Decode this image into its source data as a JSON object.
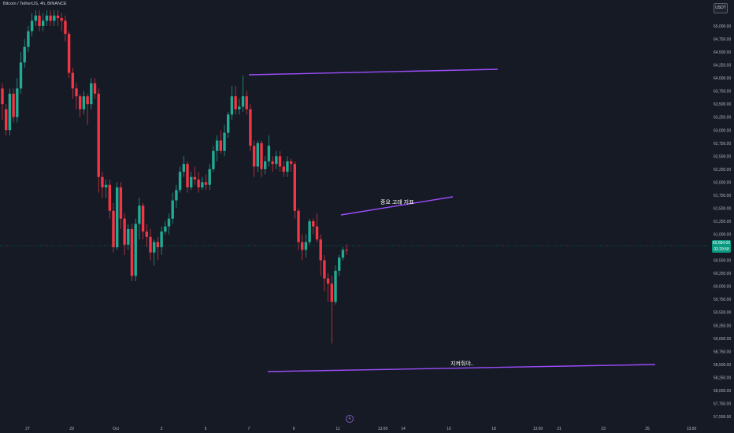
{
  "header": {
    "symbol_title": "Bitcoin / TetherUS, 4h, BINANCE"
  },
  "toolbar": {
    "currency_label": "USDT"
  },
  "colors": {
    "up": "#22ab94",
    "down": "#f23645",
    "trendline": "#9c4dfa",
    "badge": "#089981"
  },
  "price_axis": {
    "labels": [
      "65,000.00",
      "64,750.00",
      "64,500.00",
      "64,250.00",
      "64,000.00",
      "63,750.00",
      "63,500.00",
      "63,250.00",
      "63,000.00",
      "62,750.00",
      "62,500.00",
      "62,250.00",
      "62,000.00",
      "61,750.00",
      "61,500.00",
      "61,250.00",
      "61,000.00",
      "60,750.00",
      "60,500.00",
      "60,250.00",
      "60,000.00",
      "59,750.00",
      "59,500.00",
      "59,250.00",
      "59,000.00",
      "58,750.00",
      "58,500.00",
      "58,250.00",
      "58,000.00",
      "57,750.00",
      "57,500.00"
    ]
  },
  "time_axis": {
    "labels": [
      "27",
      "29",
      "Oct",
      "3",
      "5",
      "7",
      "9",
      "11",
      "13:00",
      "14",
      "16",
      "18",
      "13:00",
      "21",
      "23",
      "25",
      "13:00"
    ]
  },
  "last_price": {
    "price": "60,684.00",
    "countdown": "02:29:58"
  },
  "annotations": {
    "label_1": "중요 고래 지표",
    "label_2": "지켜줘야.."
  },
  "chart_data": {
    "type": "candlestick",
    "title": "Bitcoin / TetherUS, 4h, BINANCE",
    "ylim": [
      57500,
      65250
    ],
    "candles": [
      [
        63800,
        63500,
        63200,
        63900
      ],
      [
        63400,
        63000,
        62900,
        63500
      ],
      [
        63000,
        63700,
        62900,
        63800
      ],
      [
        63700,
        63250,
        63150,
        63800
      ],
      [
        63250,
        63800,
        63150,
        64000
      ],
      [
        63800,
        64300,
        63700,
        64500
      ],
      [
        64300,
        64600,
        64200,
        64750
      ],
      [
        64600,
        64900,
        64500,
        65000
      ],
      [
        64900,
        65100,
        64800,
        65250
      ],
      [
        65100,
        65200,
        65000,
        65300
      ],
      [
        65200,
        65000,
        64900,
        65300
      ],
      [
        65000,
        65100,
        64900,
        65250
      ],
      [
        65100,
        65200,
        65000,
        65300
      ],
      [
        65200,
        65100,
        65000,
        65300
      ],
      [
        65100,
        65200,
        65000,
        65300
      ],
      [
        65200,
        65150,
        65000,
        65300
      ],
      [
        65150,
        65100,
        64900,
        65250
      ],
      [
        65100,
        64850,
        64700,
        65200
      ],
      [
        64850,
        64100,
        64000,
        64900
      ],
      [
        64100,
        63800,
        63600,
        64200
      ],
      [
        63800,
        63650,
        63400,
        63900
      ],
      [
        63650,
        63400,
        63250,
        63700
      ],
      [
        63400,
        63650,
        63300,
        63750
      ],
      [
        63650,
        63500,
        63100,
        63700
      ],
      [
        63500,
        63900,
        63400,
        64000
      ],
      [
        63900,
        63700,
        63600,
        64000
      ],
      [
        63700,
        62100,
        61800,
        63800
      ],
      [
        62100,
        61900,
        61700,
        62200
      ],
      [
        61900,
        61950,
        61700,
        62050
      ],
      [
        61950,
        61450,
        61300,
        62050
      ],
      [
        61450,
        60750,
        60650,
        61600
      ],
      [
        60750,
        61900,
        60700,
        62000
      ],
      [
        61900,
        61300,
        61100,
        62000
      ],
      [
        61300,
        60800,
        60600,
        61400
      ],
      [
        60800,
        61100,
        60700,
        61200
      ],
      [
        61100,
        60200,
        60100,
        61200
      ],
      [
        60200,
        61200,
        60100,
        61300
      ],
      [
        61200,
        61550,
        60900,
        61700
      ],
      [
        61550,
        61050,
        60900,
        61600
      ],
      [
        61050,
        60950,
        60750,
        61200
      ],
      [
        60950,
        60650,
        60500,
        61100
      ],
      [
        60650,
        60850,
        60400,
        60900
      ],
      [
        60850,
        60750,
        60500,
        60950
      ],
      [
        60750,
        61050,
        60600,
        61150
      ],
      [
        61050,
        61150,
        61000,
        61250
      ],
      [
        61150,
        61300,
        61000,
        61400
      ],
      [
        61300,
        61650,
        61200,
        61800
      ],
      [
        61650,
        61850,
        61500,
        61950
      ],
      [
        61850,
        62200,
        61800,
        62300
      ],
      [
        62200,
        62350,
        62100,
        62500
      ],
      [
        62350,
        61900,
        61800,
        62400
      ],
      [
        61900,
        62100,
        61850,
        62200
      ],
      [
        62100,
        62050,
        61950,
        62300
      ],
      [
        62050,
        61900,
        61800,
        62200
      ],
      [
        61900,
        62000,
        61850,
        62100
      ],
      [
        62000,
        61950,
        61850,
        62150
      ],
      [
        61950,
        62250,
        61850,
        62350
      ],
      [
        62250,
        62600,
        62200,
        62700
      ],
      [
        62600,
        62800,
        62400,
        62900
      ],
      [
        62800,
        62600,
        62550,
        63000
      ],
      [
        62600,
        62950,
        62500,
        63100
      ],
      [
        62950,
        63300,
        62850,
        63350
      ],
      [
        63300,
        63650,
        63200,
        63850
      ],
      [
        63650,
        63400,
        63300,
        63850
      ],
      [
        63400,
        63450,
        63300,
        63600
      ],
      [
        63450,
        63650,
        63350,
        64050
      ],
      [
        63650,
        63400,
        63300,
        63750
      ],
      [
        63400,
        62700,
        62600,
        63500
      ],
      [
        62700,
        62300,
        62100,
        62800
      ],
      [
        62300,
        62750,
        62200,
        62800
      ],
      [
        62750,
        62250,
        62100,
        62800
      ],
      [
        62250,
        62400,
        62150,
        62500
      ],
      [
        62400,
        62700,
        62300,
        62900
      ],
      [
        62400,
        62350,
        62200,
        62500
      ],
      [
        62350,
        62500,
        62250,
        62600
      ],
      [
        62500,
        62300,
        62200,
        62600
      ],
      [
        62300,
        62200,
        62100,
        62400
      ],
      [
        62200,
        62400,
        62100,
        62500
      ],
      [
        62400,
        62350,
        62200,
        62450
      ],
      [
        62350,
        61450,
        61300,
        62400
      ],
      [
        61450,
        60850,
        60700,
        61500
      ],
      [
        60850,
        60700,
        60500,
        61000
      ],
      [
        60700,
        60850,
        60550,
        61000
      ],
      [
        60850,
        61250,
        60800,
        61300
      ],
      [
        61250,
        61150,
        61000,
        61300
      ],
      [
        61150,
        60900,
        60850,
        61400
      ],
      [
        60900,
        60500,
        60200,
        61000
      ],
      [
        60500,
        60150,
        59900,
        60600
      ],
      [
        60150,
        60050,
        59700,
        60250
      ],
      [
        60050,
        59700,
        58900,
        60200
      ],
      [
        59700,
        60300,
        59650,
        60400
      ],
      [
        60300,
        60550,
        60200,
        60600
      ],
      [
        60550,
        60700,
        60500,
        60750
      ],
      [
        60700,
        60684,
        60600,
        60800
      ]
    ],
    "trendlines": [
      {
        "label": "",
        "from": [
          "Oct 7 12:00",
          63840
        ],
        "to": [
          "Oct 17 04:00",
          63950
        ]
      },
      {
        "label": "중요 고래 지표",
        "from": [
          "Oct 11 00:00",
          61200
        ],
        "to": [
          "Oct 15 12:00",
          61600
        ]
      },
      {
        "label": "지켜줘야..",
        "from": [
          "Oct 7 12:00",
          58350
        ],
        "to": [
          "Oct 24 00:00",
          58500
        ]
      }
    ]
  }
}
